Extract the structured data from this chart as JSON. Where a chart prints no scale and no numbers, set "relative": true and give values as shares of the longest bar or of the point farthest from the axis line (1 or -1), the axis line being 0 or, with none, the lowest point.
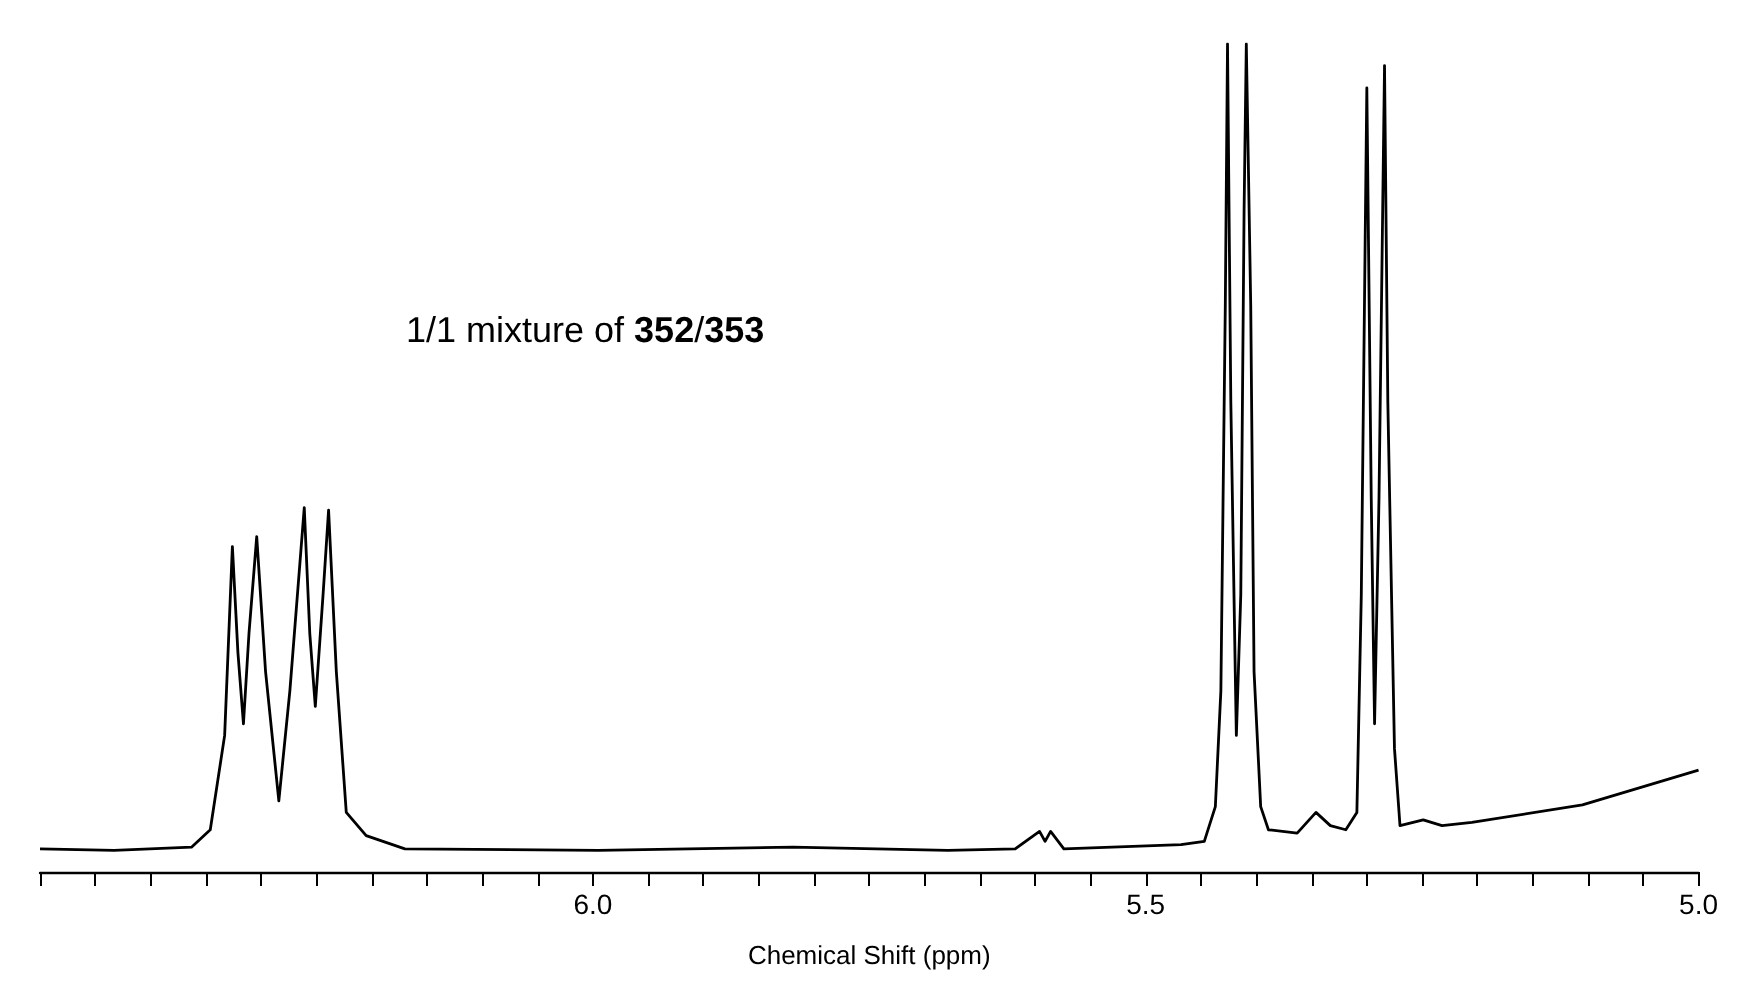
{
  "chart_data": {
    "type": "line",
    "xlabel": "Chemical Shift (ppm)",
    "relative": true,
    "annotations": [
      "1/1 mixture of 352/353"
    ],
    "xlim": [
      6.5,
      5.0
    ],
    "xticks": [
      {
        "value": 6.5,
        "label": null
      },
      {
        "value": 6.45,
        "label": null
      },
      {
        "value": 6.4,
        "label": null
      },
      {
        "value": 6.35,
        "label": null
      },
      {
        "value": 6.3,
        "label": null
      },
      {
        "value": 6.25,
        "label": null
      },
      {
        "value": 6.2,
        "label": null
      },
      {
        "value": 6.15,
        "label": null
      },
      {
        "value": 6.1,
        "label": null
      },
      {
        "value": 6.05,
        "label": null
      },
      {
        "value": 6,
        "label": "6.0"
      },
      {
        "value": 5.95,
        "label": null
      },
      {
        "value": 5.9,
        "label": null
      },
      {
        "value": 5.85,
        "label": null
      },
      {
        "value": 5.8,
        "label": null
      },
      {
        "value": 5.75,
        "label": null
      },
      {
        "value": 5.7,
        "label": null
      },
      {
        "value": 5.65,
        "label": null
      },
      {
        "value": 5.6,
        "label": null
      },
      {
        "value": 5.55,
        "label": null
      },
      {
        "value": 5.5,
        "label": "5.5"
      },
      {
        "value": 5.45,
        "label": null
      },
      {
        "value": 5.4,
        "label": null
      },
      {
        "value": 5.35,
        "label": null
      },
      {
        "value": 5.3,
        "label": null
      },
      {
        "value": 5.25,
        "label": null
      },
      {
        "value": 5.2,
        "label": null
      },
      {
        "value": 5.15,
        "label": null
      },
      {
        "value": 5.1,
        "label": null
      },
      {
        "value": 5.05,
        "label": null
      },
      {
        "value": 5,
        "label": "5.0"
      }
    ],
    "grid": false,
    "marker": "none",
    "line_style": "solid",
    "series": [
      {
        "color": "#000000",
        "x": [
          6.5,
          6.433,
          6.363,
          6.346,
          6.333,
          6.326,
          6.321,
          6.316,
          6.311,
          6.304,
          6.296,
          6.284,
          6.274,
          6.261,
          6.256,
          6.251,
          6.244,
          6.239,
          6.232,
          6.223,
          6.205,
          6.17,
          5.995,
          5.819,
          5.679,
          5.618,
          5.596,
          5.591,
          5.586,
          5.574,
          5.468,
          5.447,
          5.437,
          5.432,
          5.428,
          5.426,
          5.423,
          5.419,
          5.418,
          5.414,
          5.411,
          5.409,
          5.405,
          5.402,
          5.396,
          5.389,
          5.363,
          5.346,
          5.333,
          5.319,
          5.309,
          5.305,
          5.3,
          5.296,
          5.293,
          5.289,
          5.284,
          5.281,
          5.275,
          5.27,
          5.249,
          5.232,
          5.205,
          5.105,
          5.0
        ],
        "values": [
          0.028,
          0.026,
          0.03,
          0.051,
          0.165,
          0.393,
          0.265,
          0.179,
          0.288,
          0.405,
          0.242,
          0.086,
          0.219,
          0.44,
          0.288,
          0.2,
          0.335,
          0.437,
          0.242,
          0.072,
          0.044,
          0.028,
          0.026,
          0.03,
          0.026,
          0.028,
          0.049,
          0.037,
          0.049,
          0.028,
          0.033,
          0.037,
          0.079,
          0.219,
          0.684,
          1.0,
          0.567,
          0.242,
          0.165,
          0.335,
          0.8,
          1.0,
          0.684,
          0.242,
          0.079,
          0.051,
          0.047,
          0.072,
          0.056,
          0.051,
          0.072,
          0.335,
          0.947,
          0.451,
          0.179,
          0.451,
          0.974,
          0.567,
          0.149,
          0.056,
          0.063,
          0.056,
          0.06,
          0.081,
          0.123
        ]
      }
    ]
  }
}
